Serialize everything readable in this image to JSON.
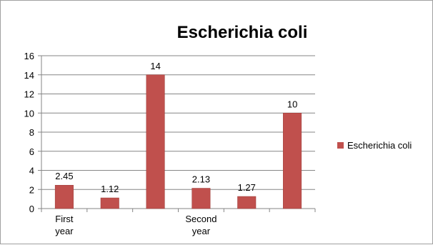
{
  "chart_data": {
    "type": "bar",
    "title": "Escherichia coli",
    "categories": [
      [
        "First",
        "year"
      ],
      [],
      [],
      [
        "Second",
        "year"
      ],
      [],
      []
    ],
    "series": [
      {
        "name": "Escherichia coli",
        "values": [
          2.45,
          1.12,
          14,
          2.13,
          1.27,
          10
        ],
        "data_labels": [
          "2.45",
          "1.12",
          "14",
          "2.13",
          "1.27",
          "10"
        ]
      }
    ],
    "ylim": [
      0,
      16
    ],
    "yticks": [
      0,
      2,
      4,
      6,
      8,
      10,
      12,
      14,
      16
    ],
    "grid": true,
    "legend": "right",
    "colors": {
      "bar": "#C0504D",
      "bar_edge": "#9B3B38",
      "grid": "#868686",
      "axis": "#868686"
    }
  }
}
